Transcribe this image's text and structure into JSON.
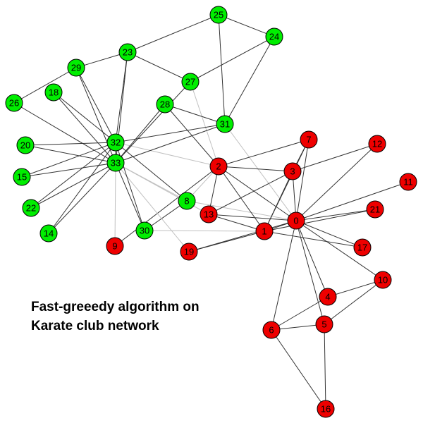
{
  "caption": {
    "line1": "Fast-greeedy algorithm on",
    "line2": "Karate club network"
  },
  "colors": {
    "community_green": "#00ee00",
    "community_red": "#ee0000",
    "edge_dark": "#333333",
    "edge_light": "#c0c0c0"
  },
  "nodes": [
    {
      "id": "0",
      "community": "red"
    },
    {
      "id": "1",
      "community": "red"
    },
    {
      "id": "2",
      "community": "red"
    },
    {
      "id": "3",
      "community": "red"
    },
    {
      "id": "4",
      "community": "red"
    },
    {
      "id": "5",
      "community": "red"
    },
    {
      "id": "6",
      "community": "red"
    },
    {
      "id": "7",
      "community": "red"
    },
    {
      "id": "8",
      "community": "green"
    },
    {
      "id": "9",
      "community": "red"
    },
    {
      "id": "10",
      "community": "red"
    },
    {
      "id": "11",
      "community": "red"
    },
    {
      "id": "12",
      "community": "red"
    },
    {
      "id": "13",
      "community": "red"
    },
    {
      "id": "14",
      "community": "green"
    },
    {
      "id": "15",
      "community": "green"
    },
    {
      "id": "16",
      "community": "red"
    },
    {
      "id": "17",
      "community": "red"
    },
    {
      "id": "18",
      "community": "green"
    },
    {
      "id": "19",
      "community": "red"
    },
    {
      "id": "20",
      "community": "green"
    },
    {
      "id": "21",
      "community": "red"
    },
    {
      "id": "22",
      "community": "green"
    },
    {
      "id": "23",
      "community": "green"
    },
    {
      "id": "24",
      "community": "green"
    },
    {
      "id": "25",
      "community": "green"
    },
    {
      "id": "26",
      "community": "green"
    },
    {
      "id": "27",
      "community": "green"
    },
    {
      "id": "28",
      "community": "green"
    },
    {
      "id": "29",
      "community": "green"
    },
    {
      "id": "30",
      "community": "green"
    },
    {
      "id": "31",
      "community": "green"
    },
    {
      "id": "32",
      "community": "green"
    },
    {
      "id": "33",
      "community": "green"
    }
  ],
  "edges": [
    [
      "0",
      "1"
    ],
    [
      "0",
      "2"
    ],
    [
      "0",
      "3"
    ],
    [
      "0",
      "4"
    ],
    [
      "0",
      "5"
    ],
    [
      "0",
      "6"
    ],
    [
      "0",
      "7"
    ],
    [
      "0",
      "8"
    ],
    [
      "0",
      "10"
    ],
    [
      "0",
      "11"
    ],
    [
      "0",
      "12"
    ],
    [
      "0",
      "13"
    ],
    [
      "0",
      "17"
    ],
    [
      "0",
      "19"
    ],
    [
      "0",
      "21"
    ],
    [
      "0",
      "31"
    ],
    [
      "1",
      "2"
    ],
    [
      "1",
      "3"
    ],
    [
      "1",
      "7"
    ],
    [
      "1",
      "13"
    ],
    [
      "1",
      "17"
    ],
    [
      "1",
      "19"
    ],
    [
      "1",
      "21"
    ],
    [
      "1",
      "30"
    ],
    [
      "2",
      "3"
    ],
    [
      "2",
      "7"
    ],
    [
      "2",
      "8"
    ],
    [
      "2",
      "9"
    ],
    [
      "2",
      "13"
    ],
    [
      "2",
      "27"
    ],
    [
      "2",
      "28"
    ],
    [
      "2",
      "32"
    ],
    [
      "3",
      "7"
    ],
    [
      "3",
      "12"
    ],
    [
      "3",
      "13"
    ],
    [
      "4",
      "6"
    ],
    [
      "4",
      "10"
    ],
    [
      "5",
      "6"
    ],
    [
      "5",
      "10"
    ],
    [
      "5",
      "16"
    ],
    [
      "6",
      "16"
    ],
    [
      "8",
      "30"
    ],
    [
      "8",
      "32"
    ],
    [
      "8",
      "33"
    ],
    [
      "9",
      "33"
    ],
    [
      "13",
      "33"
    ],
    [
      "14",
      "32"
    ],
    [
      "14",
      "33"
    ],
    [
      "15",
      "32"
    ],
    [
      "15",
      "33"
    ],
    [
      "18",
      "32"
    ],
    [
      "18",
      "33"
    ],
    [
      "19",
      "33"
    ],
    [
      "20",
      "32"
    ],
    [
      "20",
      "33"
    ],
    [
      "22",
      "32"
    ],
    [
      "22",
      "33"
    ],
    [
      "23",
      "25"
    ],
    [
      "23",
      "27"
    ],
    [
      "23",
      "29"
    ],
    [
      "23",
      "32"
    ],
    [
      "23",
      "33"
    ],
    [
      "24",
      "25"
    ],
    [
      "24",
      "27"
    ],
    [
      "24",
      "31"
    ],
    [
      "25",
      "31"
    ],
    [
      "26",
      "29"
    ],
    [
      "26",
      "33"
    ],
    [
      "27",
      "33"
    ],
    [
      "28",
      "31"
    ],
    [
      "28",
      "33"
    ],
    [
      "29",
      "32"
    ],
    [
      "29",
      "33"
    ],
    [
      "30",
      "32"
    ],
    [
      "30",
      "33"
    ],
    [
      "31",
      "32"
    ],
    [
      "31",
      "33"
    ],
    [
      "32",
      "33"
    ]
  ]
}
